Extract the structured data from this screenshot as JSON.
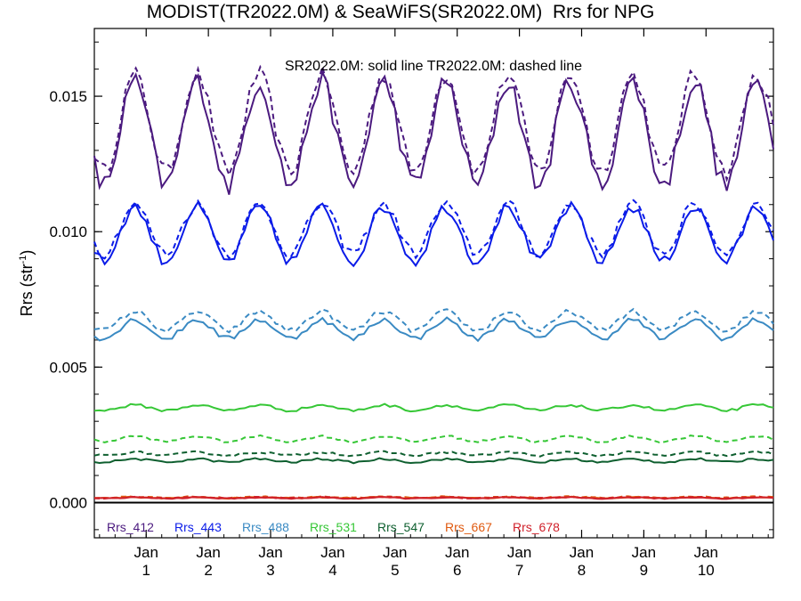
{
  "chart_data": {
    "type": "line",
    "title": "MODIST(TR2022.0M) & SeaWiFS(SR2022.0M)  Rrs for NPG",
    "annotation": "SR2022.0M: solid line   TR2022.0M: dashed line",
    "ylabel_main": "Rrs (str",
    "ylabel_sup": "-1",
    "ylabel_tail": ")",
    "ylim": [
      -0.0013,
      0.0175
    ],
    "xlim": [
      0,
      131
    ],
    "yticks": [
      {
        "value": 0.0,
        "label": "0.000"
      },
      {
        "value": 0.005,
        "label": "0.005"
      },
      {
        "value": 0.01,
        "label": "0.010"
      },
      {
        "value": 0.015,
        "label": "0.015"
      }
    ],
    "xticks": [
      {
        "value": 10,
        "month": "Jan",
        "year": "1"
      },
      {
        "value": 22,
        "month": "Jan",
        "year": "2"
      },
      {
        "value": 34,
        "month": "Jan",
        "year": "3"
      },
      {
        "value": 46,
        "month": "Jan",
        "year": "4"
      },
      {
        "value": 58,
        "month": "Jan",
        "year": "5"
      },
      {
        "value": 70,
        "month": "Jan",
        "year": "6"
      },
      {
        "value": 82,
        "month": "Jan",
        "year": "7"
      },
      {
        "value": 94,
        "month": "Jan",
        "year": "8"
      },
      {
        "value": 106,
        "month": "Jan",
        "year": "9"
      },
      {
        "value": 118,
        "month": "Jan",
        "year": "10"
      }
    ],
    "series": [
      {
        "name": "Rrs_412",
        "color": "#4b1a7f",
        "solid": {
          "base": 0.0136,
          "amp": 0.0019,
          "noise": 0.0004,
          "phase": 0.35
        },
        "dashed": {
          "base": 0.014,
          "amp": 0.0018,
          "noise": 0.0003,
          "phase": 0.35
        }
      },
      {
        "name": "Rrs_443",
        "color": "#0a1be8",
        "solid": {
          "base": 0.0099,
          "amp": 0.001,
          "noise": 0.0002,
          "phase": 0.35
        },
        "dashed": {
          "base": 0.0101,
          "amp": 0.0009,
          "noise": 0.0002,
          "phase": 0.35
        }
      },
      {
        "name": "Rrs_488",
        "color": "#3a8ac3",
        "solid": {
          "base": 0.0064,
          "amp": 0.00035,
          "noise": 0.0001,
          "phase": 0.35
        },
        "dashed": {
          "base": 0.0067,
          "amp": 0.00035,
          "noise": 0.0001,
          "phase": 0.35
        }
      },
      {
        "name": "Rrs_531",
        "color": "#36c736",
        "solid": {
          "base": 0.0035,
          "amp": 0.0001,
          "noise": 5e-05,
          "phase": 0.35
        },
        "dashed": {
          "base": 0.00235,
          "amp": 0.0001,
          "noise": 4e-05,
          "phase": 0.35
        }
      },
      {
        "name": "Rrs_547",
        "color": "#0e5f2f",
        "solid": {
          "base": 0.00155,
          "amp": 6e-05,
          "noise": 4e-05,
          "phase": 0.35
        },
        "dashed": {
          "base": 0.0018,
          "amp": 6e-05,
          "noise": 4e-05,
          "phase": 0.35
        }
      },
      {
        "name": "Rrs_667",
        "color": "#e05a10",
        "solid": {
          "base": 0.00018,
          "amp": 2e-05,
          "noise": 2e-05,
          "phase": 0.35
        },
        "dashed": {
          "base": 0.0002,
          "amp": 2e-05,
          "noise": 2e-05,
          "phase": 0.35
        }
      },
      {
        "name": "Rrs_678",
        "color": "#d0202a",
        "solid": {
          "base": 0.00017,
          "amp": 2e-05,
          "noise": 2e-05,
          "phase": 0.35
        },
        "dashed": {
          "base": 0.00018,
          "amp": 2e-05,
          "noise": 2e-05,
          "phase": 0.35
        }
      }
    ],
    "months": 131,
    "zero_line": true,
    "legend_placement": "bottom-left"
  }
}
